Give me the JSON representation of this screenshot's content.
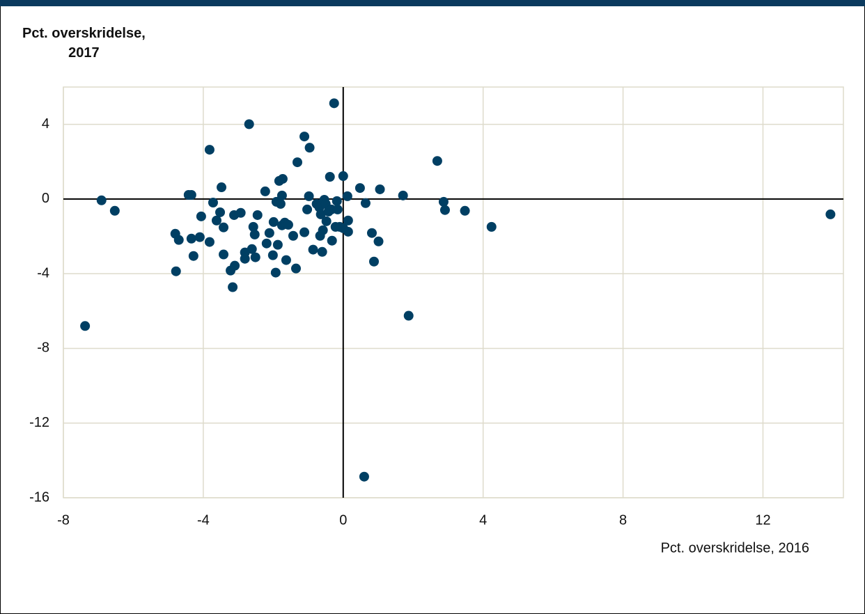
{
  "chart_data": {
    "type": "scatter",
    "xlabel": "Pct. overskridelse, 2016",
    "ylabel": "Pct. overskridelse,\n2017",
    "color": "#003f63",
    "grid": true,
    "xlim": [
      -8,
      14.3
    ],
    "xticks": [
      -8,
      -4,
      0,
      4,
      8,
      12
    ],
    "ylim": [
      -16,
      6
    ],
    "yticks": [
      4,
      0,
      -4,
      -8,
      -12,
      -16
    ],
    "x": [
      -7.38,
      -6.91,
      -6.53,
      -4.8,
      -4.7,
      -4.78,
      -4.42,
      -4.34,
      -4.34,
      -4.28,
      -4.1,
      -4.06,
      -3.82,
      -3.82,
      -3.72,
      -3.62,
      -3.52,
      -3.48,
      -3.42,
      -3.42,
      -3.22,
      -3.16,
      -3.12,
      -3.1,
      -2.93,
      -2.81,
      -2.81,
      -2.69,
      -2.61,
      -2.57,
      -2.53,
      -2.51,
      -2.45,
      -2.23,
      -2.19,
      -2.11,
      -2.01,
      -1.99,
      -1.93,
      -1.91,
      -1.87,
      -1.83,
      -1.79,
      -1.75,
      -1.75,
      -1.73,
      -1.67,
      -1.63,
      -1.57,
      -1.43,
      -1.35,
      -1.31,
      -1.11,
      -1.11,
      -1.03,
      -0.98,
      -0.96,
      -0.86,
      -0.76,
      -0.68,
      -0.66,
      -0.64,
      -0.6,
      -0.58,
      -0.54,
      -0.5,
      -0.48,
      -0.42,
      -0.38,
      -0.34,
      -0.32,
      -0.26,
      -0.22,
      -0.18,
      -0.16,
      -0.1,
      0.0,
      0.0,
      0.12,
      0.14,
      0.14,
      0.48,
      0.6,
      0.64,
      0.82,
      0.88,
      1.01,
      1.05,
      1.71,
      1.87,
      2.69,
      2.87,
      2.91,
      3.48,
      4.24,
      13.93
    ],
    "values": [
      -6.8,
      -0.07,
      -0.63,
      -1.86,
      -2.19,
      -3.87,
      0.22,
      0.22,
      -2.12,
      -3.05,
      -2.04,
      -0.93,
      2.64,
      -2.3,
      -0.19,
      -1.15,
      -0.71,
      0.63,
      -1.52,
      -2.97,
      -3.83,
      -4.72,
      -0.86,
      -3.57,
      -0.74,
      -2.86,
      -3.2,
      4.01,
      -2.68,
      -1.49,
      -1.9,
      -3.12,
      -0.86,
      0.41,
      -2.38,
      -1.82,
      -3.01,
      -1.23,
      -3.94,
      -0.15,
      -2.45,
      0.97,
      -0.26,
      0.19,
      -1.41,
      1.08,
      -1.26,
      -3.27,
      -1.38,
      -1.97,
      -3.72,
      1.97,
      -1.78,
      3.35,
      -0.56,
      0.15,
      2.75,
      -2.71,
      -0.26,
      -0.45,
      -1.97,
      -0.82,
      -2.83,
      -1.67,
      -0.04,
      -0.26,
      -1.19,
      -0.67,
      1.19,
      -0.56,
      -2.23,
      5.13,
      -1.49,
      -0.11,
      -0.56,
      -1.49,
      1.23,
      -1.56,
      0.15,
      -1.15,
      -1.75,
      0.59,
      -14.87,
      -0.22,
      -1.82,
      -3.35,
      -2.27,
      0.52,
      0.19,
      -6.25,
      2.04,
      -0.15,
      -0.59,
      -0.63,
      -1.49,
      -0.82
    ]
  }
}
